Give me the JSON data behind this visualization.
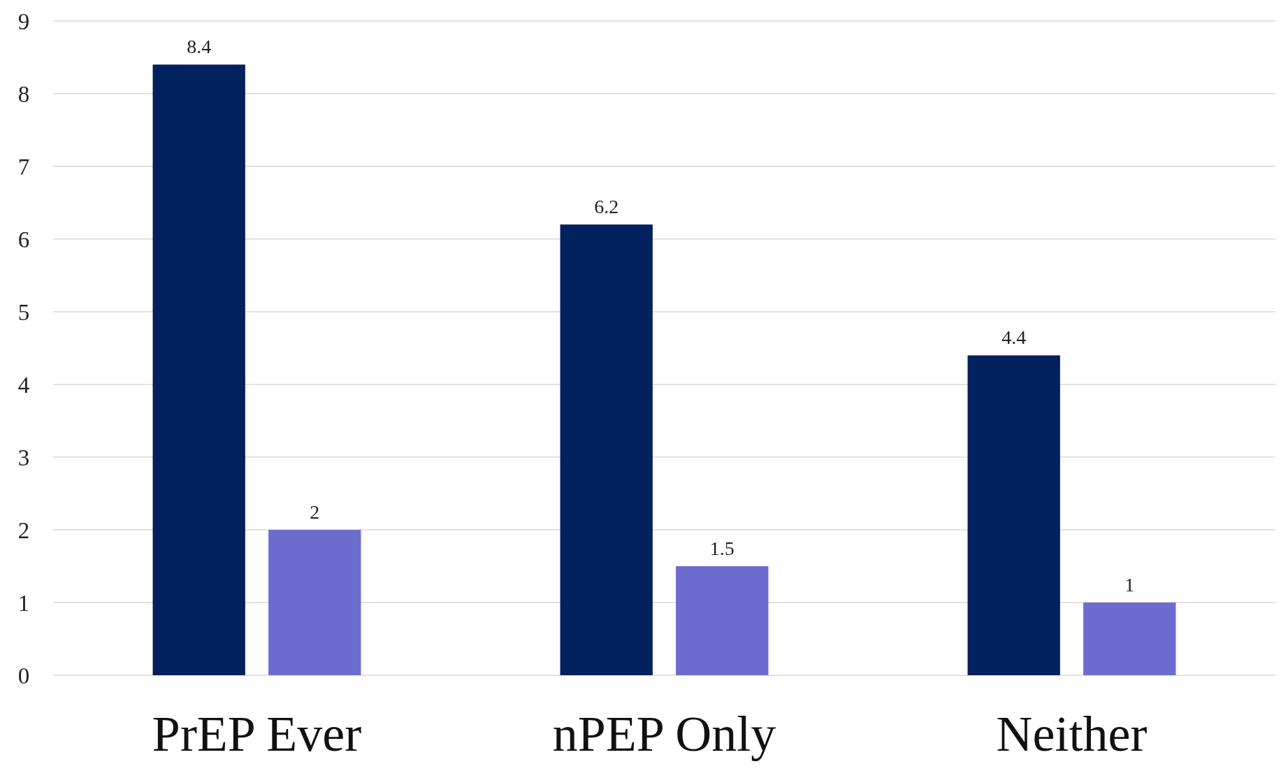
{
  "chart_data": {
    "type": "bar",
    "categories": [
      "PrEP Ever",
      "nPEP Only",
      "Neither"
    ],
    "series": [
      {
        "color": "#03215e",
        "values": [
          8.4,
          6.2,
          4.4
        ]
      },
      {
        "color": "#6c6ccf",
        "values": [
          2,
          1.5,
          1
        ]
      }
    ],
    "ylim": [
      0,
      9
    ],
    "yticks": [
      0,
      1,
      2,
      3,
      4,
      5,
      6,
      7,
      8,
      9
    ],
    "grid": "y",
    "data_labels": true
  }
}
